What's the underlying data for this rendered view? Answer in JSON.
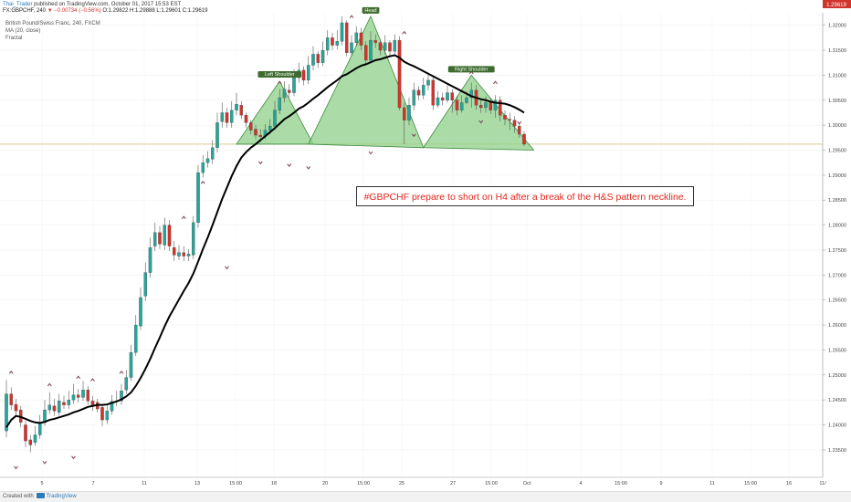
{
  "header": {
    "author": "Thai_Trader",
    "published_text": " published on TradingView.com, October 01, 2017 15:53 EST",
    "symbol": "FX:GBPCHF, 240",
    "change": "▼ −0.00734 (−0.56%)",
    "ohlc": "O:1.29822 H:1.29888 L:1.29601 C:1.29619",
    "close_price": "1.29619"
  },
  "legend": {
    "instrument": "British Pound/Swiss Franc, 240, FXCM",
    "ma": "MA (20, close)",
    "fractal": "Fractal"
  },
  "callout": "#GBPCHF prepare to short on H4 after a break of the H&S pattern neckline.",
  "footer": {
    "created_with": "Created with",
    "brand": "TradingView"
  },
  "colors": {
    "up": "#26a69a",
    "down": "#d0342c",
    "ma": "#000000",
    "pattern_fill": "#8fd08a",
    "pattern_stroke": "#3a8a3a",
    "fractal": "#7a3b52",
    "neckline": "#c8a850"
  },
  "chart_data": {
    "type": "candlestick",
    "ylim": [
      1.2295,
      1.3225
    ],
    "y_ticks": [
      1.235,
      1.24,
      1.245,
      1.25,
      1.255,
      1.26,
      1.265,
      1.27,
      1.275,
      1.28,
      1.285,
      1.29,
      1.295,
      1.3,
      1.305,
      1.31,
      1.315,
      1.32
    ],
    "x_ticks": [
      "5",
      "7",
      "11",
      "13",
      "15:00",
      "18",
      "20",
      "15:00",
      "25",
      "27",
      "15:00",
      "Oct",
      "4",
      "15:00",
      "9",
      "11",
      "15:00",
      "16",
      "11/"
    ],
    "series": [
      {
        "name": "GBPCHF",
        "open": [
          1.2388,
          1.2462,
          1.2441,
          1.243,
          1.24,
          1.237,
          1.2365,
          1.238,
          1.2405,
          1.243,
          1.2438,
          1.2425,
          1.2445,
          1.244,
          1.245,
          1.246,
          1.2455,
          1.247,
          1.2448,
          1.2445,
          1.2435,
          1.241,
          1.2428,
          1.2447,
          1.2448,
          1.247,
          1.2495,
          1.2545,
          1.2598,
          1.2658,
          1.2705,
          1.2758,
          1.2785,
          1.276,
          1.28,
          1.2755,
          1.2738,
          1.2745,
          1.2738,
          1.274,
          1.2805,
          1.2905,
          1.2925,
          1.2932,
          1.2955,
          1.3007,
          1.3025,
          1.3005,
          1.303,
          1.304,
          1.302,
          1.3005,
          1.2992,
          1.298,
          1.2978,
          1.299,
          1.2998,
          1.303,
          1.3055,
          1.307,
          1.3065,
          1.3095,
          1.311,
          1.309,
          1.312,
          1.3142,
          1.3125,
          1.315,
          1.3175,
          1.316,
          1.3168,
          1.3205,
          1.3145,
          1.3165,
          1.3185,
          1.316,
          1.313,
          1.317,
          1.3165,
          1.315,
          1.3165,
          1.3148,
          1.317,
          1.3035,
          1.301,
          1.304,
          1.307,
          1.306,
          1.308,
          1.309,
          1.304,
          1.3055,
          1.305,
          1.3065,
          1.305,
          1.303,
          1.3045,
          1.3055,
          1.307,
          1.304,
          1.3035,
          1.3045,
          1.303,
          1.305,
          1.302,
          1.3012,
          1.301,
          1.2998,
          1.2982
        ],
        "close": [
          1.2462,
          1.244,
          1.2428,
          1.2405,
          1.2368,
          1.236,
          1.238,
          1.2405,
          1.243,
          1.244,
          1.2428,
          1.2448,
          1.244,
          1.245,
          1.246,
          1.2455,
          1.247,
          1.2448,
          1.244,
          1.2432,
          1.241,
          1.2428,
          1.2447,
          1.2448,
          1.2468,
          1.2495,
          1.2545,
          1.26,
          1.2655,
          1.2705,
          1.2755,
          1.2785,
          1.2762,
          1.28,
          1.2758,
          1.274,
          1.2745,
          1.2738,
          1.2742,
          1.2805,
          1.2905,
          1.2925,
          1.2933,
          1.2955,
          1.3005,
          1.3025,
          1.3005,
          1.303,
          1.3042,
          1.302,
          1.3005,
          1.299,
          1.298,
          1.2977,
          1.299,
          1.2998,
          1.303,
          1.3055,
          1.3072,
          1.3065,
          1.3095,
          1.311,
          1.309,
          1.312,
          1.3142,
          1.3125,
          1.315,
          1.3175,
          1.316,
          1.3168,
          1.3205,
          1.3145,
          1.3165,
          1.3185,
          1.316,
          1.313,
          1.317,
          1.3165,
          1.315,
          1.3165,
          1.3148,
          1.317,
          1.3035,
          1.301,
          1.304,
          1.307,
          1.306,
          1.308,
          1.309,
          1.304,
          1.3055,
          1.305,
          1.3065,
          1.305,
          1.303,
          1.3045,
          1.3055,
          1.307,
          1.304,
          1.3035,
          1.3045,
          1.303,
          1.305,
          1.302,
          1.3012,
          1.301,
          1.2998,
          1.2982,
          1.2962
        ],
        "high": [
          1.249,
          1.2475,
          1.2452,
          1.2438,
          1.2408,
          1.238,
          1.2398,
          1.242,
          1.245,
          1.2465,
          1.2452,
          1.2462,
          1.2458,
          1.2468,
          1.2482,
          1.2472,
          1.2488,
          1.2478,
          1.2458,
          1.2452,
          1.244,
          1.2438,
          1.246,
          1.2468,
          1.2482,
          1.251,
          1.256,
          1.262,
          1.2675,
          1.2725,
          1.2775,
          1.2805,
          1.2798,
          1.2815,
          1.281,
          1.2768,
          1.276,
          1.2758,
          1.2752,
          1.2818,
          1.292,
          1.294,
          1.2948,
          1.297,
          1.3025,
          1.3045,
          1.3035,
          1.3048,
          1.3065,
          1.3048,
          1.3025,
          1.301,
          1.3,
          1.2992,
          1.3002,
          1.3012,
          1.3048,
          1.3072,
          1.3088,
          1.3082,
          1.3112,
          1.3125,
          1.3118,
          1.3138,
          1.3158,
          1.3148,
          1.3168,
          1.319,
          1.3185,
          1.319,
          1.3218,
          1.321,
          1.318,
          1.3198,
          1.3195,
          1.3168,
          1.3188,
          1.3182,
          1.3172,
          1.318,
          1.317,
          1.3182,
          1.3178,
          1.3045,
          1.3055,
          1.3085,
          1.3078,
          1.3095,
          1.3105,
          1.3098,
          1.3068,
          1.3065,
          1.308,
          1.3072,
          1.3058,
          1.306,
          1.3068,
          1.3085,
          1.308,
          1.305,
          1.3058,
          1.3055,
          1.306,
          1.3058,
          1.303,
          1.3025,
          1.3018,
          1.3005,
          1.2988
        ],
        "low": [
          1.2375,
          1.243,
          1.2418,
          1.2395,
          1.2355,
          1.2345,
          1.2358,
          1.2372,
          1.2398,
          1.2422,
          1.2418,
          1.2418,
          1.2432,
          1.2432,
          1.2442,
          1.2445,
          1.2448,
          1.244,
          1.2428,
          1.2425,
          1.2398,
          1.2402,
          1.242,
          1.2438,
          1.244,
          1.2462,
          1.2488,
          1.2538,
          1.259,
          1.2648,
          1.2695,
          1.2748,
          1.2752,
          1.275,
          1.2748,
          1.2728,
          1.273,
          1.2728,
          1.2728,
          1.2732,
          1.2795,
          1.2895,
          1.2915,
          1.2922,
          1.2945,
          1.2995,
          1.2995,
          1.2995,
          1.302,
          1.3012,
          1.2995,
          1.2982,
          1.2972,
          1.2968,
          1.2972,
          1.2982,
          1.299,
          1.3022,
          1.3045,
          1.3055,
          1.3058,
          1.3085,
          1.308,
          1.3082,
          1.311,
          1.3115,
          1.3118,
          1.314,
          1.315,
          1.3152,
          1.316,
          1.3138,
          1.314,
          1.3158,
          1.315,
          1.3122,
          1.3125,
          1.3155,
          1.314,
          1.3142,
          1.314,
          1.3142,
          1.303,
          1.2962,
          1.3,
          1.303,
          1.305,
          1.3052,
          1.307,
          1.303,
          1.3035,
          1.304,
          1.3045,
          1.3025,
          1.302,
          1.3025,
          1.3042,
          1.3035,
          1.303,
          1.3025,
          1.3025,
          1.3022,
          1.3015,
          1.3008,
          1.3,
          1.299,
          1.2985,
          1.2975,
          1.2958
        ],
        "ma": [
          1.2395,
          1.241,
          1.2418,
          1.2416,
          1.2412,
          1.2408,
          1.2405,
          1.2404,
          1.2406,
          1.241,
          1.2412,
          1.2415,
          1.2418,
          1.2421,
          1.2425,
          1.2428,
          1.2432,
          1.2436,
          1.2438,
          1.244,
          1.244,
          1.2441,
          1.2444,
          1.2447,
          1.2451,
          1.2457,
          1.2465,
          1.2478,
          1.2494,
          1.2512,
          1.2532,
          1.2554,
          1.2575,
          1.2597,
          1.2617,
          1.2634,
          1.2651,
          1.2668,
          1.2684,
          1.2703,
          1.2727,
          1.2752,
          1.2775,
          1.28,
          1.2826,
          1.2852,
          1.2875,
          1.2898,
          1.2918,
          1.2935,
          1.2946,
          1.2955,
          1.2962,
          1.297,
          1.2978,
          1.2986,
          1.2994,
          1.3003,
          1.3012,
          1.3018,
          1.3025,
          1.3033,
          1.3038,
          1.3045,
          1.3053,
          1.306,
          1.3068,
          1.3076,
          1.3083,
          1.309,
          1.3098,
          1.3102,
          1.3108,
          1.3114,
          1.3119,
          1.3122,
          1.3126,
          1.313,
          1.3132,
          1.3135,
          1.3138,
          1.314,
          1.3135,
          1.3127,
          1.3122,
          1.3118,
          1.3113,
          1.3108,
          1.3103,
          1.3098,
          1.3093,
          1.3088,
          1.3083,
          1.3078,
          1.3073,
          1.3068,
          1.3063,
          1.3058,
          1.3055,
          1.3052,
          1.305,
          1.3047,
          1.3045,
          1.3044,
          1.3043,
          1.304,
          1.3036,
          1.3031,
          1.3025
        ]
      }
    ],
    "fractals_up": [
      1.25,
      1.2475,
      1.249,
      1.2485,
      1.25,
      1.281,
      1.288,
      1.308,
      1.3212,
      1.322,
      1.318,
      1.31,
      1.308
    ],
    "fractals_down": [
      1.232,
      1.233,
      1.234,
      1.272,
      1.293,
      1.2925,
      1.292,
      1.295,
      1.2985,
      1.3012,
      1.301
    ],
    "neckline_price": 1.2962,
    "pattern_labels": [
      "Left Shoulder",
      "Head",
      "Right Shoulder"
    ]
  }
}
